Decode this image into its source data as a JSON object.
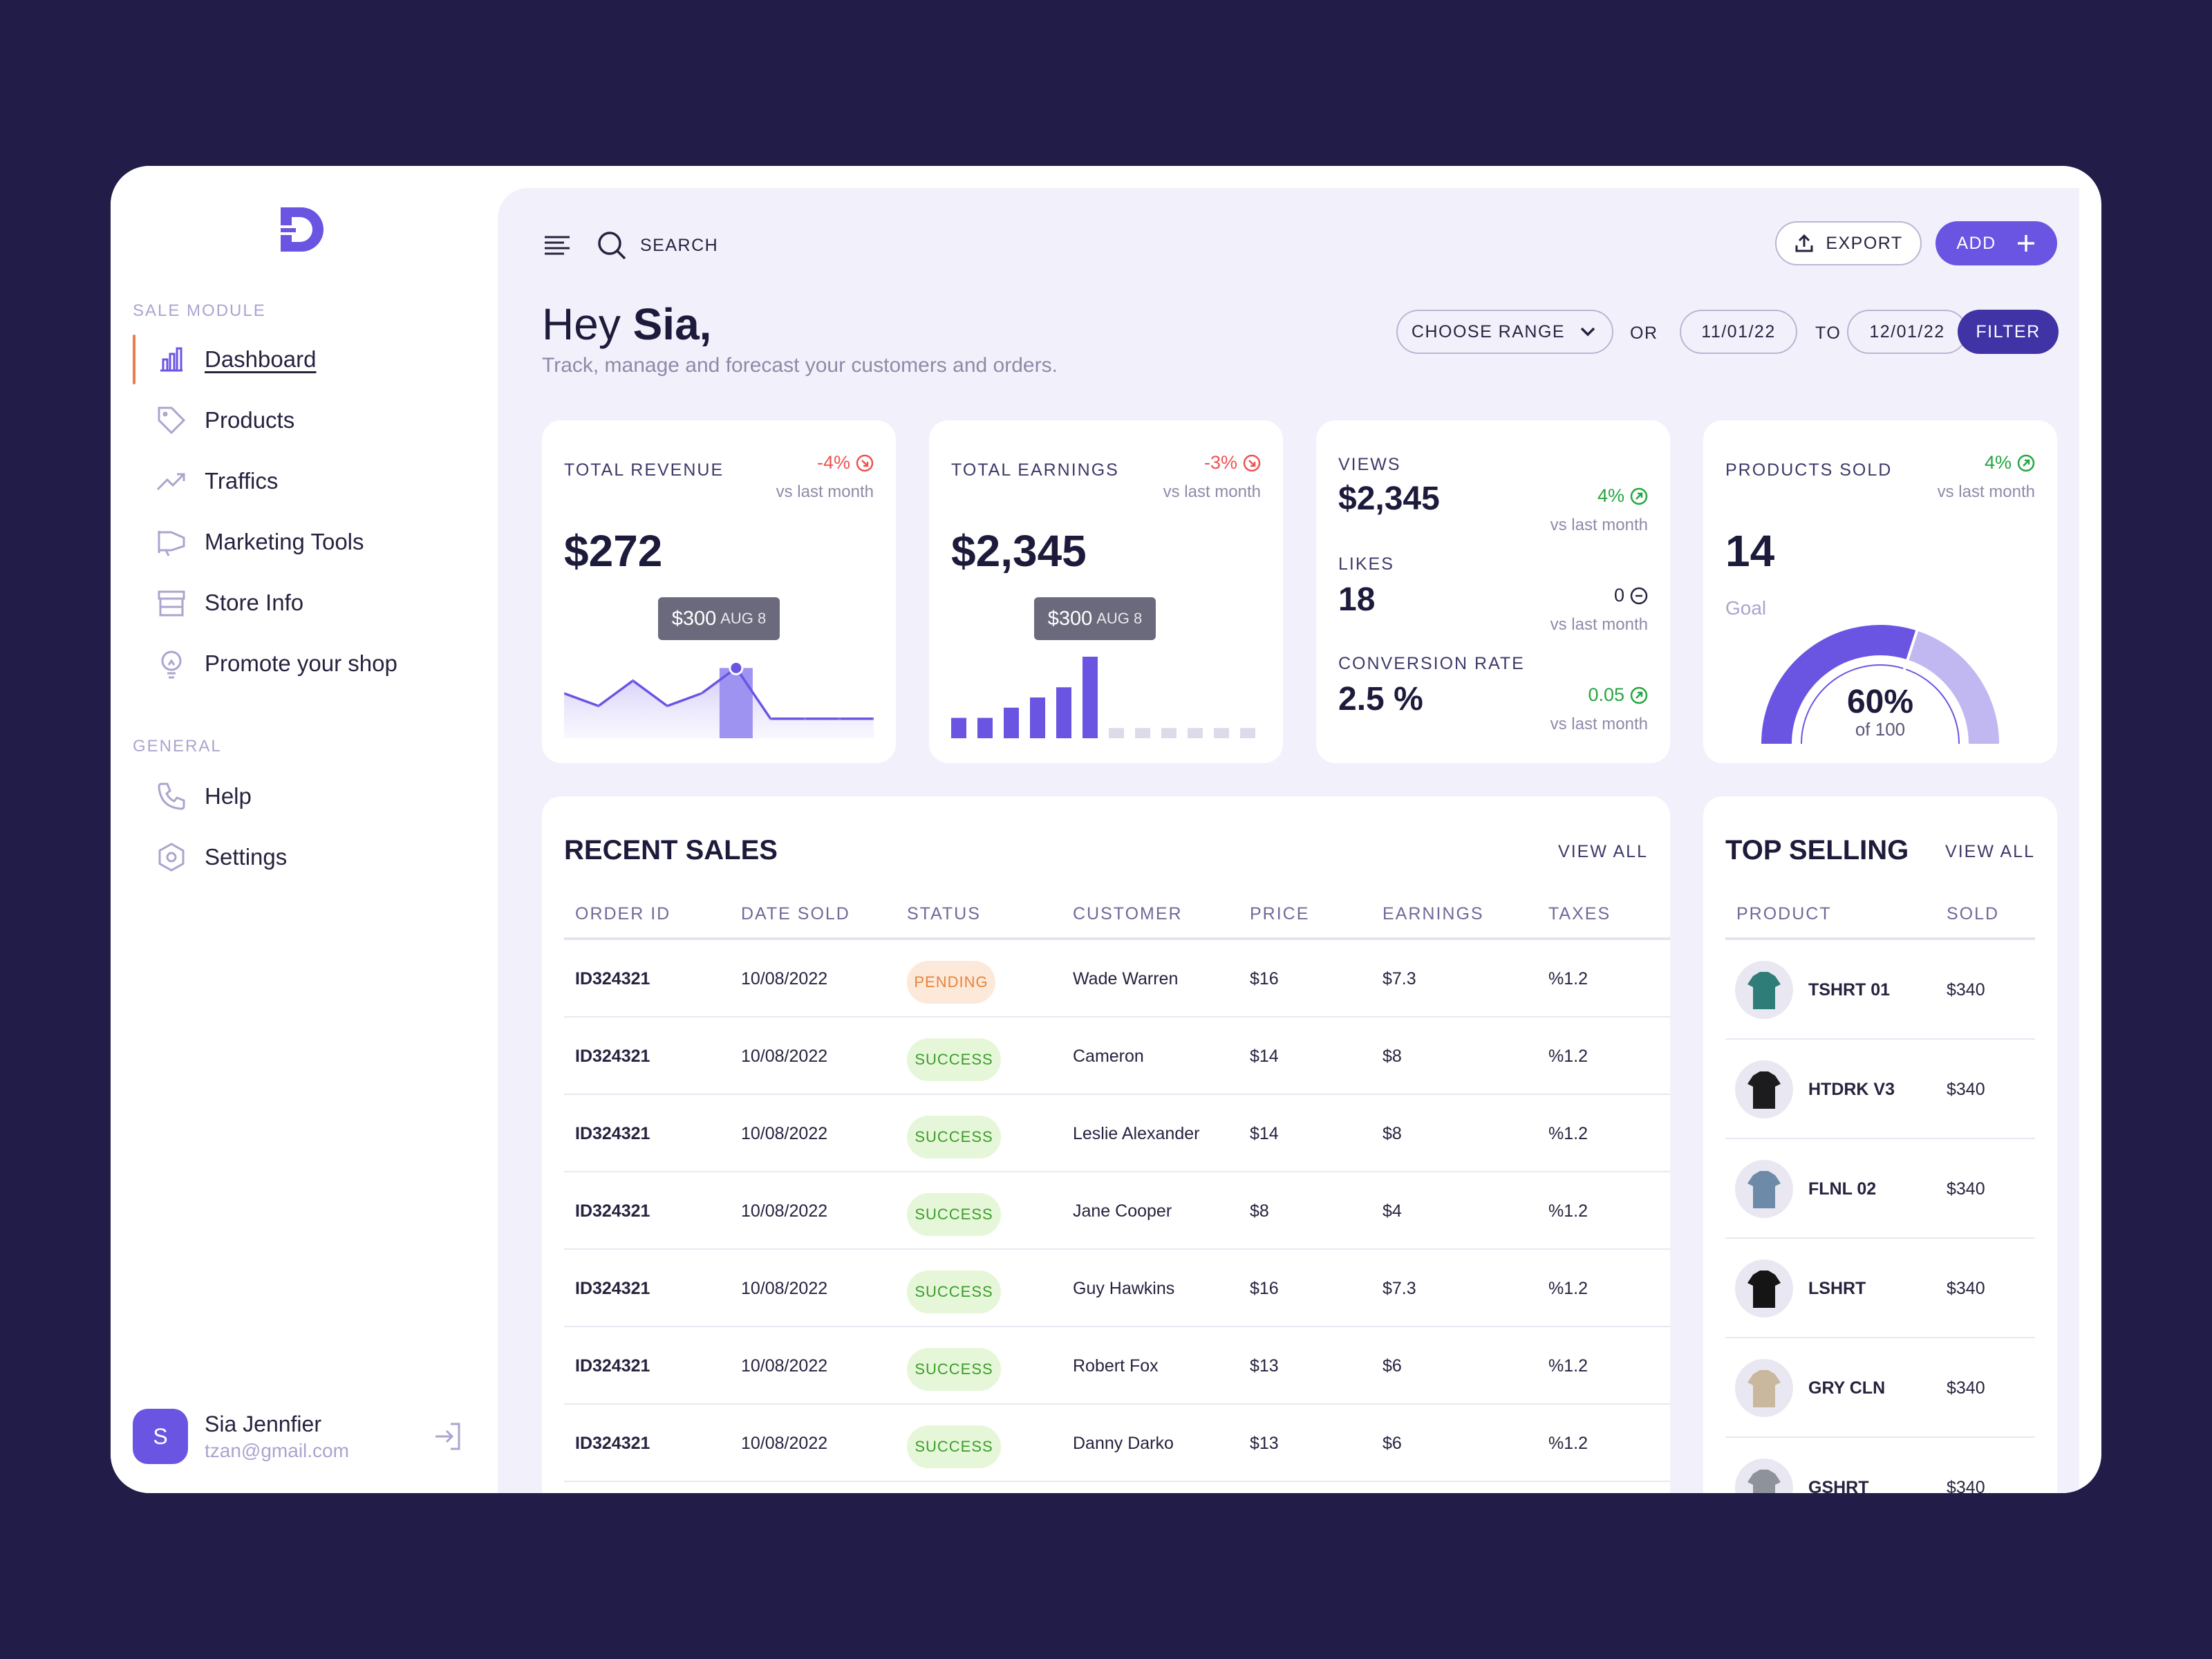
{
  "sidebar": {
    "section_sale": "SALE MODULE",
    "section_general": "GENERAL",
    "items": [
      {
        "label": "Dashboard",
        "icon": "bar-chart-icon"
      },
      {
        "label": "Products",
        "icon": "tag-icon"
      },
      {
        "label": "Traffics",
        "icon": "trend-up-icon"
      },
      {
        "label": "Marketing Tools",
        "icon": "megaphone-icon"
      },
      {
        "label": "Store Info",
        "icon": "store-icon"
      },
      {
        "label": "Promote your shop",
        "icon": "lightbulb-icon"
      }
    ],
    "general_items": [
      {
        "label": "Help",
        "icon": "phone-icon"
      },
      {
        "label": "Settings",
        "icon": "hexagon-settings-icon"
      }
    ],
    "user": {
      "initial": "S",
      "name": "Sia Jennfier",
      "email": "tzan@gmail.com"
    }
  },
  "topbar": {
    "search_label": "SEARCH",
    "export_label": "EXPORT",
    "add_label": "ADD"
  },
  "greeting": {
    "hey": "Hey ",
    "name": "Sia,",
    "subtitle": "Track, manage and forecast your customers and orders."
  },
  "filter": {
    "range_label": "CHOOSE RANGE",
    "or": "OR",
    "from": "11/01/22",
    "to_label": "TO",
    "to": "12/01/22",
    "filter_label": "FILTER"
  },
  "cards": {
    "revenue": {
      "title": "TOTAL REVENUE",
      "delta": "-4%",
      "vs": "vs last month",
      "value": "$272",
      "tip_value": "$300",
      "tip_date": "AUG 8"
    },
    "earnings": {
      "title": "TOTAL EARNINGS",
      "delta": "-3%",
      "vs": "vs last month",
      "value": "$2,345",
      "tip_value": "$300",
      "tip_date": "AUG 8"
    },
    "stats": {
      "views_label": "VIEWS",
      "views_value": "$2,345",
      "views_delta": "4%",
      "views_vs": "vs last month",
      "likes_label": "LIKES",
      "likes_value": "18",
      "likes_delta": "0",
      "likes_vs": "vs last month",
      "conv_label": "CONVERSION RATE",
      "conv_value": "2.5 %",
      "conv_delta": "0.05",
      "conv_vs": "vs last month"
    },
    "sold": {
      "title": "PRODUCTS SOLD",
      "delta": "4%",
      "vs": "vs last month",
      "value": "14",
      "goal_label": "Goal",
      "percent": "60%",
      "of": "of 100",
      "fraction": 0.6
    }
  },
  "chart_data": [
    {
      "type": "area",
      "series": [
        {
          "values": [
            3,
            2,
            4,
            2,
            3,
            5,
            1,
            1,
            1,
            1
          ]
        }
      ],
      "highlight_index": 5
    },
    {
      "type": "bar",
      "series": [
        {
          "values": [
            2,
            2,
            3,
            4,
            5,
            8,
            1,
            1,
            1,
            1,
            1,
            1
          ]
        }
      ],
      "highlight_index": 5
    }
  ],
  "recent_sales": {
    "title": "RECENT SALES",
    "view_all": "VIEW ALL",
    "columns": [
      "ORDER ID",
      "DATE SOLD",
      "STATUS",
      "CUSTOMER",
      "PRICE",
      "EARNINGS",
      "TAXES"
    ],
    "rows": [
      {
        "id": "ID324321",
        "date": "10/08/2022",
        "status": "PENDING",
        "customer": "Wade Warren",
        "price": "$16",
        "earnings": "$7.3",
        "taxes": "%1.2"
      },
      {
        "id": "ID324321",
        "date": "10/08/2022",
        "status": "SUCCESS",
        "customer": "Cameron",
        "price": "$14",
        "earnings": "$8",
        "taxes": "%1.2"
      },
      {
        "id": "ID324321",
        "date": "10/08/2022",
        "status": "SUCCESS",
        "customer": "Leslie Alexander",
        "price": "$14",
        "earnings": "$8",
        "taxes": "%1.2"
      },
      {
        "id": "ID324321",
        "date": "10/08/2022",
        "status": "SUCCESS",
        "customer": "Jane Cooper",
        "price": "$8",
        "earnings": "$4",
        "taxes": "%1.2"
      },
      {
        "id": "ID324321",
        "date": "10/08/2022",
        "status": "SUCCESS",
        "customer": "Guy Hawkins",
        "price": "$16",
        "earnings": "$7.3",
        "taxes": "%1.2"
      },
      {
        "id": "ID324321",
        "date": "10/08/2022",
        "status": "SUCCESS",
        "customer": "Robert Fox",
        "price": "$13",
        "earnings": "$6",
        "taxes": "%1.2"
      },
      {
        "id": "ID324321",
        "date": "10/08/2022",
        "status": "SUCCESS",
        "customer": "Danny Darko",
        "price": "$13",
        "earnings": "$6",
        "taxes": "%1.2"
      }
    ]
  },
  "top_selling": {
    "title": "TOP SELLING",
    "view_all": "VIEW ALL",
    "columns": [
      "PRODUCT",
      "SOLD"
    ],
    "rows": [
      {
        "name": "TSHRT 01",
        "sold": "$340",
        "color": "#2f7d78"
      },
      {
        "name": "HTDRK V3",
        "sold": "$340",
        "color": "#1c1c1f"
      },
      {
        "name": "FLNL 02",
        "sold": "$340",
        "color": "#6d8ba8"
      },
      {
        "name": "LSHRT",
        "sold": "$340",
        "color": "#151515"
      },
      {
        "name": "GRY CLN",
        "sold": "$340",
        "color": "#c9b89e"
      },
      {
        "name": "GSHRT",
        "sold": "$340",
        "color": "#8e939b"
      }
    ]
  },
  "colors": {
    "accent": "#6a55e3",
    "dark": "#221c48",
    "negative": "#ef5252",
    "positive": "#26a641"
  }
}
